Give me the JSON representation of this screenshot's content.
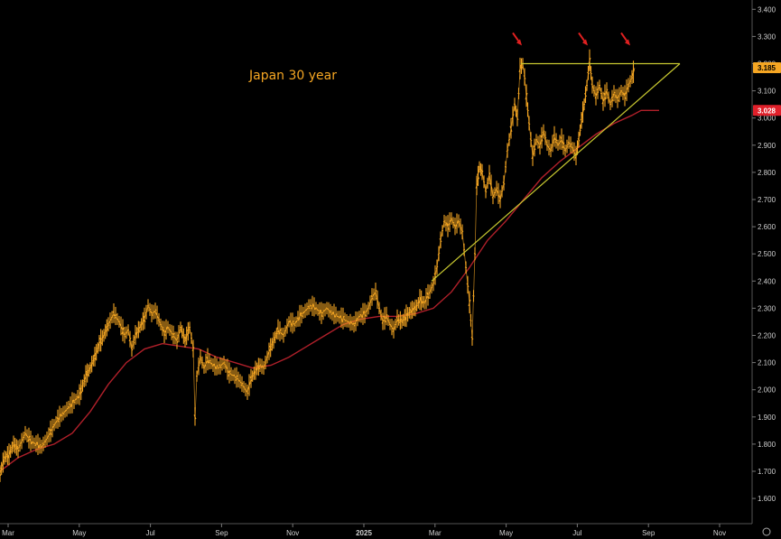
{
  "chart_data": {
    "type": "candlestick_line",
    "title": "Japan 30 year",
    "x_tick_labels": [
      "Mar",
      "May",
      "Jul",
      "Sep",
      "Nov",
      "2025",
      "Mar",
      "May",
      "Jul",
      "Sep",
      "Nov"
    ],
    "y_tick_labels": [
      "1.600",
      "1.700",
      "1.800",
      "1.900",
      "2.000",
      "2.100",
      "2.200",
      "2.300",
      "2.400",
      "2.500",
      "2.600",
      "2.700",
      "2.800",
      "2.900",
      "3.000",
      "3.100",
      "3.200",
      "3.300",
      "3.400"
    ],
    "ylim": [
      1.55,
      3.43
    ],
    "price_label": "3.185",
    "ma_label": "3.028",
    "colors": {
      "price": "#f5a623",
      "ma": "#b0202a",
      "trendline": "#c8c830",
      "arrows": "#e02020",
      "price_tag": "#f5a623",
      "ma_tag": "#e0202a"
    },
    "price_path": [
      [
        0,
        1.69
      ],
      [
        5,
        1.75
      ],
      [
        10,
        1.76
      ],
      [
        15,
        1.8
      ],
      [
        20,
        1.78
      ],
      [
        28,
        1.84
      ],
      [
        34,
        1.81
      ],
      [
        40,
        1.8
      ],
      [
        46,
        1.79
      ],
      [
        52,
        1.82
      ],
      [
        60,
        1.87
      ],
      [
        66,
        1.9
      ],
      [
        72,
        1.92
      ],
      [
        80,
        1.95
      ],
      [
        88,
        1.98
      ],
      [
        95,
        2.05
      ],
      [
        100,
        2.08
      ],
      [
        105,
        2.12
      ],
      [
        110,
        2.17
      ],
      [
        115,
        2.2
      ],
      [
        120,
        2.24
      ],
      [
        126,
        2.28
      ],
      [
        132,
        2.25
      ],
      [
        138,
        2.2
      ],
      [
        142,
        2.22
      ],
      [
        146,
        2.15
      ],
      [
        150,
        2.2
      ],
      [
        155,
        2.23
      ],
      [
        160,
        2.26
      ],
      [
        164,
        2.31
      ],
      [
        168,
        2.28
      ],
      [
        172,
        2.29
      ],
      [
        178,
        2.24
      ],
      [
        182,
        2.21
      ],
      [
        186,
        2.23
      ],
      [
        192,
        2.2
      ],
      [
        196,
        2.18
      ],
      [
        200,
        2.23
      ],
      [
        205,
        2.18
      ],
      [
        210,
        2.23
      ],
      [
        214,
        2.15
      ],
      [
        216,
        1.9
      ],
      [
        218,
        2.05
      ],
      [
        222,
        2.12
      ],
      [
        226,
        2.08
      ],
      [
        230,
        2.11
      ],
      [
        236,
        2.09
      ],
      [
        242,
        2.08
      ],
      [
        248,
        2.1
      ],
      [
        254,
        2.06
      ],
      [
        260,
        2.05
      ],
      [
        266,
        2.03
      ],
      [
        270,
        2.01
      ],
      [
        274,
        1.99
      ],
      [
        278,
        2.04
      ],
      [
        283,
        2.07
      ],
      [
        288,
        2.09
      ],
      [
        292,
        2.08
      ],
      [
        298,
        2.14
      ],
      [
        303,
        2.18
      ],
      [
        308,
        2.22
      ],
      [
        314,
        2.2
      ],
      [
        320,
        2.25
      ],
      [
        326,
        2.24
      ],
      [
        332,
        2.27
      ],
      [
        338,
        2.29
      ],
      [
        344,
        2.31
      ],
      [
        350,
        2.3
      ],
      [
        356,
        2.28
      ],
      [
        362,
        2.3
      ],
      [
        368,
        2.28
      ],
      [
        374,
        2.27
      ],
      [
        380,
        2.26
      ],
      [
        386,
        2.25
      ],
      [
        392,
        2.24
      ],
      [
        398,
        2.27
      ],
      [
        404,
        2.28
      ],
      [
        408,
        2.3
      ],
      [
        412,
        2.34
      ],
      [
        416,
        2.36
      ],
      [
        420,
        2.3
      ],
      [
        424,
        2.25
      ],
      [
        428,
        2.27
      ],
      [
        432,
        2.24
      ],
      [
        436,
        2.22
      ],
      [
        440,
        2.26
      ],
      [
        445,
        2.25
      ],
      [
        450,
        2.27
      ],
      [
        455,
        2.29
      ],
      [
        460,
        2.3
      ],
      [
        465,
        2.33
      ],
      [
        470,
        2.32
      ],
      [
        476,
        2.36
      ],
      [
        480,
        2.39
      ],
      [
        484,
        2.45
      ],
      [
        488,
        2.55
      ],
      [
        492,
        2.62
      ],
      [
        496,
        2.6
      ],
      [
        500,
        2.63
      ],
      [
        504,
        2.6
      ],
      [
        508,
        2.62
      ],
      [
        512,
        2.58
      ],
      [
        516,
        2.45
      ],
      [
        520,
        2.32
      ],
      [
        523,
        2.19
      ],
      [
        526,
        2.5
      ],
      [
        528,
        2.75
      ],
      [
        531,
        2.82
      ],
      [
        534,
        2.8
      ],
      [
        538,
        2.73
      ],
      [
        542,
        2.79
      ],
      [
        546,
        2.71
      ],
      [
        550,
        2.74
      ],
      [
        554,
        2.7
      ],
      [
        558,
        2.76
      ],
      [
        562,
        2.88
      ],
      [
        566,
        2.96
      ],
      [
        570,
        3.05
      ],
      [
        573,
        3.0
      ],
      [
        576,
        3.18
      ],
      [
        579,
        3.2
      ],
      [
        581,
        3.15
      ],
      [
        583,
        3.08
      ],
      [
        586,
        2.98
      ],
      [
        590,
        2.86
      ],
      [
        594,
        2.92
      ],
      [
        598,
        2.9
      ],
      [
        602,
        2.95
      ],
      [
        606,
        2.9
      ],
      [
        610,
        2.88
      ],
      [
        614,
        2.93
      ],
      [
        618,
        2.9
      ],
      [
        622,
        2.92
      ],
      [
        626,
        2.88
      ],
      [
        630,
        2.91
      ],
      [
        634,
        2.89
      ],
      [
        638,
        2.86
      ],
      [
        641,
        2.92
      ],
      [
        644,
        2.99
      ],
      [
        647,
        3.05
      ],
      [
        650,
        3.12
      ],
      [
        653,
        3.21
      ],
      [
        656,
        3.12
      ],
      [
        660,
        3.08
      ],
      [
        664,
        3.12
      ],
      [
        668,
        3.06
      ],
      [
        672,
        3.1
      ],
      [
        676,
        3.05
      ],
      [
        680,
        3.09
      ],
      [
        684,
        3.07
      ],
      [
        688,
        3.1
      ],
      [
        692,
        3.08
      ],
      [
        696,
        3.12
      ],
      [
        700,
        3.15
      ],
      [
        703,
        3.185
      ]
    ],
    "ma_path": [
      [
        0,
        1.7
      ],
      [
        20,
        1.75
      ],
      [
        40,
        1.78
      ],
      [
        60,
        1.8
      ],
      [
        80,
        1.84
      ],
      [
        100,
        1.92
      ],
      [
        120,
        2.02
      ],
      [
        140,
        2.1
      ],
      [
        160,
        2.15
      ],
      [
        180,
        2.17
      ],
      [
        200,
        2.16
      ],
      [
        220,
        2.15
      ],
      [
        240,
        2.12
      ],
      [
        260,
        2.1
      ],
      [
        280,
        2.08
      ],
      [
        300,
        2.09
      ],
      [
        320,
        2.12
      ],
      [
        340,
        2.16
      ],
      [
        360,
        2.2
      ],
      [
        380,
        2.24
      ],
      [
        400,
        2.26
      ],
      [
        420,
        2.27
      ],
      [
        440,
        2.27
      ],
      [
        460,
        2.28
      ],
      [
        480,
        2.3
      ],
      [
        500,
        2.36
      ],
      [
        520,
        2.45
      ],
      [
        540,
        2.55
      ],
      [
        560,
        2.62
      ],
      [
        580,
        2.7
      ],
      [
        600,
        2.78
      ],
      [
        620,
        2.84
      ],
      [
        640,
        2.89
      ],
      [
        660,
        2.94
      ],
      [
        680,
        2.98
      ],
      [
        700,
        3.01
      ],
      [
        710,
        3.028
      ],
      [
        730,
        3.028
      ]
    ],
    "resistance_line": [
      [
        577,
        3.2
      ],
      [
        753,
        3.2
      ]
    ],
    "support_line": [
      [
        478,
        2.4
      ],
      [
        753,
        3.2
      ]
    ],
    "arrows": [
      [
        572,
        3.28
      ],
      [
        645,
        3.28
      ],
      [
        692,
        3.28
      ]
    ]
  }
}
